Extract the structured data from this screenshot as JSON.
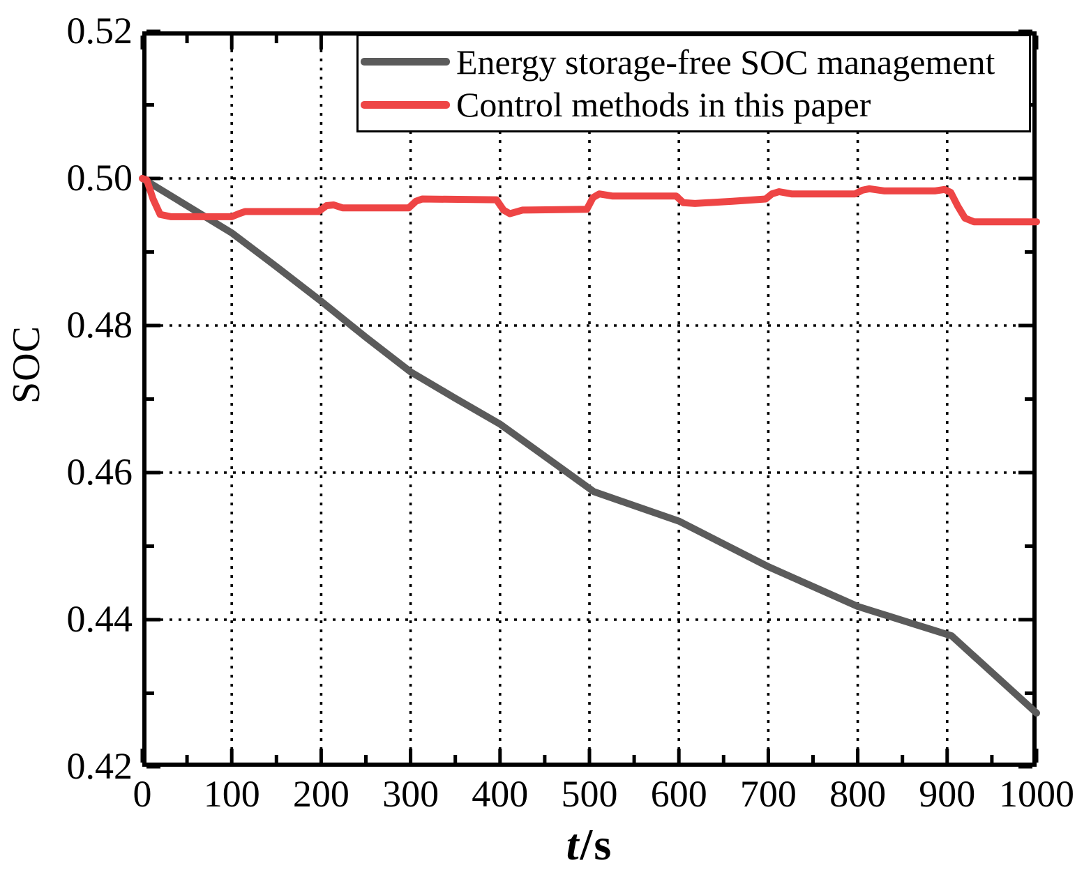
{
  "chart_data": {
    "type": "line",
    "title": "",
    "xlabel_italic": "t",
    "xlabel_unit": "/s",
    "ylabel": "SOC",
    "xlim": [
      0,
      1000
    ],
    "ylim": [
      0.42,
      0.52
    ],
    "background_color": "#ffffff",
    "axis_color": "#000000",
    "grid": "dotted black at major ticks",
    "legend_position": "top inside, boxed",
    "x_axis": {
      "major_ticks": [
        0,
        100,
        200,
        300,
        400,
        500,
        600,
        700,
        800,
        900,
        1000
      ],
      "tick_labels": [
        "0",
        "100",
        "200",
        "300",
        "400",
        "500",
        "600",
        "700",
        "800",
        "900",
        "1000"
      ],
      "minor_ticks": [
        50,
        150,
        250,
        350,
        450,
        550,
        650,
        750,
        850,
        950
      ],
      "gridlines": [
        100,
        200,
        300,
        400,
        500,
        600,
        700,
        800,
        900
      ]
    },
    "y_axis": {
      "major_ticks": [
        0.52,
        0.5,
        0.48,
        0.46,
        0.44,
        0.42
      ],
      "tick_labels": [
        "0.52",
        "0.50",
        "0.48",
        "0.46",
        "0.44",
        "0.42"
      ],
      "minor_ticks": [
        0.51,
        0.49,
        0.47,
        0.45,
        0.43
      ],
      "gridlines": [
        0.5,
        0.48,
        0.46,
        0.44
      ]
    },
    "series": [
      {
        "name": "Energy storage-free SOC management",
        "color": "#5b5b5b",
        "points": [
          [
            0,
            0.5
          ],
          [
            100,
            0.4926
          ],
          [
            150,
            0.488
          ],
          [
            200,
            0.4833
          ],
          [
            250,
            0.4784
          ],
          [
            300,
            0.4737
          ],
          [
            350,
            0.4701
          ],
          [
            400,
            0.4666
          ],
          [
            505,
            0.4574
          ],
          [
            600,
            0.4534
          ],
          [
            700,
            0.4472
          ],
          [
            800,
            0.4418
          ],
          [
            905,
            0.4378
          ],
          [
            1000,
            0.4273
          ]
        ]
      },
      {
        "name": "Control methods in this paper",
        "color": "#ee4545",
        "points": [
          [
            0,
            0.5
          ],
          [
            5,
            0.4998
          ],
          [
            12,
            0.4972
          ],
          [
            20,
            0.4951
          ],
          [
            32,
            0.4948
          ],
          [
            100,
            0.4948
          ],
          [
            108,
            0.4952
          ],
          [
            115,
            0.4955
          ],
          [
            197,
            0.4955
          ],
          [
            206,
            0.4963
          ],
          [
            214,
            0.4964
          ],
          [
            224,
            0.496
          ],
          [
            298,
            0.496
          ],
          [
            306,
            0.4969
          ],
          [
            313,
            0.4972
          ],
          [
            396,
            0.4971
          ],
          [
            404,
            0.4957
          ],
          [
            411,
            0.4952
          ],
          [
            425,
            0.4957
          ],
          [
            497,
            0.4958
          ],
          [
            504,
            0.4974
          ],
          [
            511,
            0.4979
          ],
          [
            526,
            0.4976
          ],
          [
            597,
            0.4976
          ],
          [
            605,
            0.4967
          ],
          [
            618,
            0.4966
          ],
          [
            660,
            0.4969
          ],
          [
            697,
            0.4972
          ],
          [
            704,
            0.4979
          ],
          [
            712,
            0.4982
          ],
          [
            726,
            0.4979
          ],
          [
            797,
            0.4979
          ],
          [
            805,
            0.4984
          ],
          [
            813,
            0.4986
          ],
          [
            830,
            0.4983
          ],
          [
            886,
            0.4983
          ],
          [
            897,
            0.4985
          ],
          [
            904,
            0.4981
          ],
          [
            912,
            0.4962
          ],
          [
            920,
            0.4946
          ],
          [
            930,
            0.4941
          ],
          [
            1000,
            0.4941
          ]
        ]
      }
    ]
  }
}
